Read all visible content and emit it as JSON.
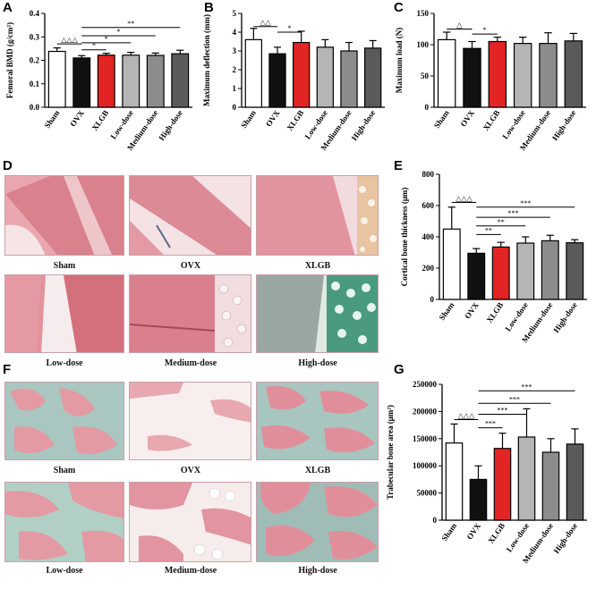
{
  "panels": {
    "A": "A",
    "B": "B",
    "C": "C",
    "D": "D",
    "E": "E",
    "F": "F",
    "G": "G"
  },
  "colors": {
    "white": "#ffffff",
    "black": "#111111",
    "red": "#e32424",
    "light_gray": "#b5b5b5",
    "mid_gray": "#8c8c8c",
    "dark_gray": "#5a5a5a"
  },
  "histology": {
    "D": {
      "labels": [
        "Sham",
        "OVX",
        "XLGB",
        "Low-dose",
        "Medium-dose",
        "High-dose"
      ],
      "stain": "H&E cortical bone"
    },
    "F": {
      "labels": [
        "Sham",
        "OVX",
        "XLGB",
        "Low-dose",
        "Medium-dose",
        "High-dose"
      ],
      "stain": "H&E trabecular bone"
    }
  },
  "chart_data": [
    {
      "panel": "A",
      "type": "bar",
      "categories": [
        "Sham",
        "OVX",
        "XLGB",
        "Low-dose",
        "Medium-dose",
        "High-dose"
      ],
      "values": [
        0.238,
        0.21,
        0.222,
        0.222,
        0.221,
        0.228
      ],
      "errors": [
        0.015,
        0.01,
        0.008,
        0.012,
        0.01,
        0.015
      ],
      "ylabel": "Femoral BMD (g/cm²)",
      "ylim": [
        0,
        0.4
      ],
      "yticks": [
        "0.0",
        "0.1",
        "0.2",
        "0.3",
        "0.4"
      ],
      "annotations": [
        {
          "from": 0,
          "to": 1,
          "label": "△△△",
          "level": 0.27
        },
        {
          "from": 1,
          "to": 2,
          "label": "*",
          "level": 0.245
        },
        {
          "from": 1,
          "to": 3,
          "label": "*",
          "level": 0.275
        },
        {
          "from": 1,
          "to": 4,
          "label": "*",
          "level": 0.305
        },
        {
          "from": 1,
          "to": 5,
          "label": "**",
          "level": 0.34
        }
      ]
    },
    {
      "panel": "B",
      "type": "bar",
      "categories": [
        "Sham",
        "OVX",
        "XLGB",
        "Low-dose",
        "Medium-dose",
        "High-dose"
      ],
      "values": [
        3.6,
        2.85,
        3.45,
        3.2,
        3.0,
        3.15
      ],
      "errors": [
        0.6,
        0.35,
        0.6,
        0.4,
        0.45,
        0.4
      ],
      "ylabel": "Maximum deflection (mm)",
      "ylim": [
        0,
        5
      ],
      "yticks": [
        "0",
        "1",
        "2",
        "3",
        "4",
        "5"
      ],
      "annotations": [
        {
          "from": 0,
          "to": 1,
          "label": "△△",
          "level": 4.3
        },
        {
          "from": 1,
          "to": 2,
          "label": "*",
          "level": 4.0
        }
      ]
    },
    {
      "panel": "C",
      "type": "bar",
      "categories": [
        "Sham",
        "OVX",
        "XLGB",
        "Low-dose",
        "Medium-dose",
        "High-dose"
      ],
      "values": [
        108,
        94,
        105,
        102,
        102,
        106
      ],
      "errors": [
        12,
        11,
        7,
        10,
        17,
        12
      ],
      "ylabel": "Maximum load (N)",
      "ylim": [
        0,
        150
      ],
      "yticks": [
        "0",
        "50",
        "100",
        "150"
      ],
      "annotations": [
        {
          "from": 0,
          "to": 1,
          "label": "△",
          "level": 125
        },
        {
          "from": 1,
          "to": 2,
          "label": "*",
          "level": 117
        }
      ]
    },
    {
      "panel": "E",
      "type": "bar",
      "categories": [
        "Sham",
        "OVX",
        "XLGB",
        "Low-dose",
        "Medium-dose",
        "High-dose"
      ],
      "values": [
        450,
        295,
        335,
        360,
        375,
        362
      ],
      "errors": [
        140,
        30,
        30,
        40,
        35,
        20
      ],
      "ylabel": "Cortical bone thickness (μm)",
      "ylim": [
        0,
        800
      ],
      "yticks": [
        "0",
        "200",
        "400",
        "600",
        "800"
      ],
      "annotations": [
        {
          "from": 0,
          "to": 1,
          "label": "△△△",
          "level": 620
        },
        {
          "from": 1,
          "to": 2,
          "label": "**",
          "level": 415
        },
        {
          "from": 1,
          "to": 3,
          "label": "**",
          "level": 470
        },
        {
          "from": 1,
          "to": 4,
          "label": "***",
          "level": 525
        },
        {
          "from": 1,
          "to": 5,
          "label": "***",
          "level": 590
        }
      ]
    },
    {
      "panel": "G",
      "type": "bar",
      "categories": [
        "Sham",
        "OVX",
        "XLGB",
        "Low-dose",
        "Medium-dose",
        "High-dose"
      ],
      "values": [
        142000,
        75000,
        132000,
        153000,
        125000,
        140000
      ],
      "errors": [
        35000,
        25000,
        28000,
        52000,
        25000,
        28000
      ],
      "ylabel": "Trabecular bone area (μm²)",
      "ylim": [
        0,
        250000
      ],
      "yticks": [
        "0",
        "50000",
        "100000",
        "150000",
        "200000",
        "250000"
      ],
      "annotations": [
        {
          "from": 0,
          "to": 1,
          "label": "△△△",
          "level": 185000
        },
        {
          "from": 1,
          "to": 2,
          "label": "***",
          "level": 170000
        },
        {
          "from": 1,
          "to": 3,
          "label": "***",
          "level": 195000
        },
        {
          "from": 1,
          "to": 4,
          "label": "***",
          "level": 215000
        },
        {
          "from": 1,
          "to": 5,
          "label": "***",
          "level": 238000
        }
      ]
    }
  ]
}
